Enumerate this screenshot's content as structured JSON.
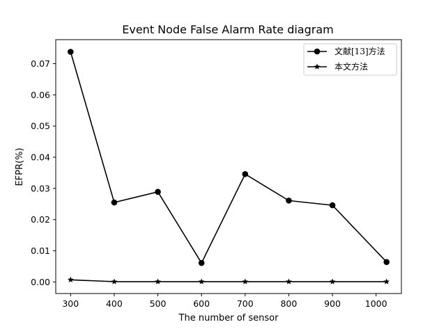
{
  "chart_data": {
    "type": "line",
    "title": "Event Node False Alarm Rate diagram",
    "xlabel": "The number of sensor",
    "ylabel": "EFPR(%)",
    "x": [
      300,
      400,
      500,
      600,
      700,
      800,
      900,
      1024
    ],
    "xticks": [
      300,
      400,
      500,
      600,
      700,
      800,
      900,
      1000
    ],
    "xtick_labels": [
      "300",
      "400",
      "500",
      "600",
      "700",
      "800",
      "900",
      "1000"
    ],
    "yticks": [
      0.0,
      0.01,
      0.02,
      0.03,
      0.04,
      0.05,
      0.06,
      0.07
    ],
    "ytick_labels": [
      "0.00",
      "0.01",
      "0.02",
      "0.03",
      "0.04",
      "0.05",
      "0.06",
      "0.07"
    ],
    "xlim": [
      266,
      1058
    ],
    "ylim": [
      -0.0037,
      0.0777
    ],
    "grid": false,
    "legend_position": "top-right",
    "series": [
      {
        "name": "文献[13]方法",
        "marker": "circle",
        "color": "#000000",
        "values": [
          0.0738,
          0.0255,
          0.0289,
          0.0061,
          0.0346,
          0.0261,
          0.0246,
          0.0064
        ]
      },
      {
        "name": "本文方法",
        "marker": "star",
        "color": "#000000",
        "values": [
          0.0007,
          0.0001,
          0.0001,
          0.0001,
          0.0001,
          0.0001,
          0.0001,
          0.0001
        ]
      }
    ]
  }
}
